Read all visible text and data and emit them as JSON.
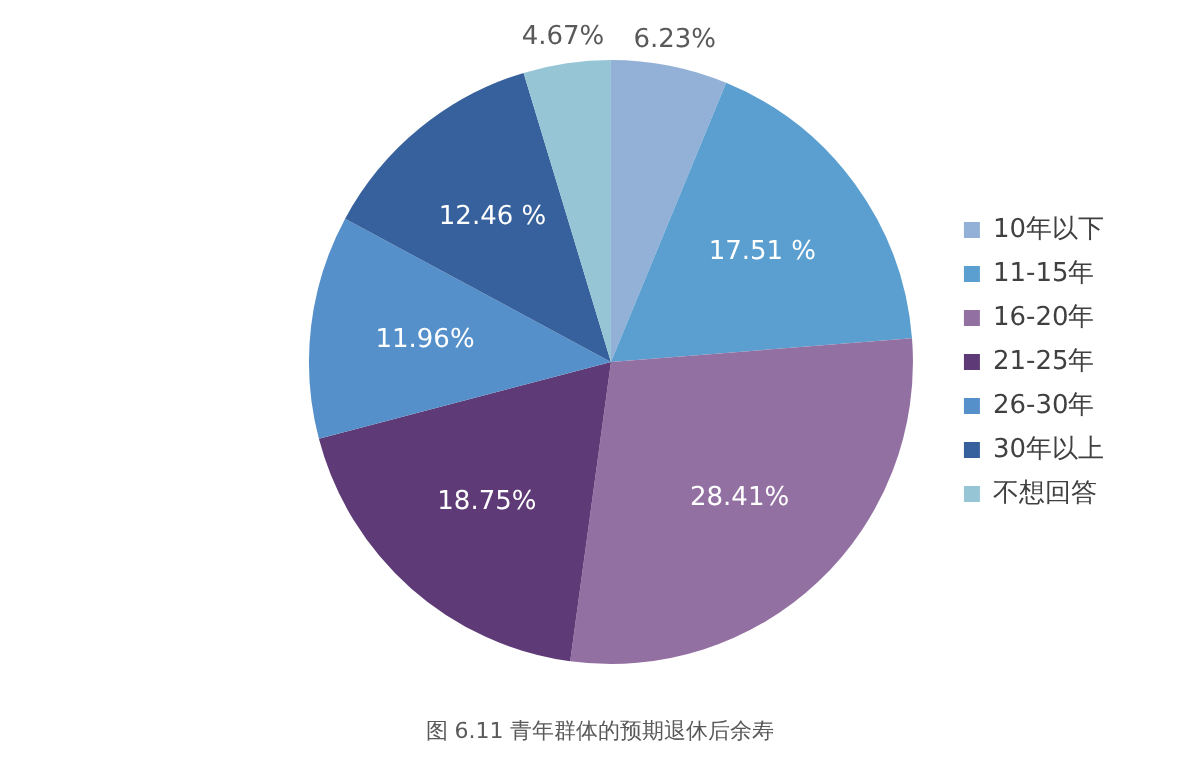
{
  "chart_data": {
    "type": "pie",
    "categories": [
      "10年以下",
      "11-15年",
      "16-20年",
      "21-25年",
      "26-30年",
      "30年以上",
      "不想回答"
    ],
    "values": [
      6.23,
      17.51,
      28.41,
      18.75,
      11.96,
      12.46,
      4.67
    ],
    "colors": [
      "#93b1d6",
      "#5a9fd0",
      "#9370a2",
      "#5e3a76",
      "#5590ca",
      "#37619c",
      "#96c6d6"
    ],
    "value_labels": [
      "6.23%",
      "17.51 %",
      "28.41%",
      "18.75%",
      "11.96%",
      "12.46 %",
      "4.67%"
    ],
    "legend": "right",
    "annotations": [
      "图 6.11 青年群体的预期退休后余寿"
    ]
  }
}
